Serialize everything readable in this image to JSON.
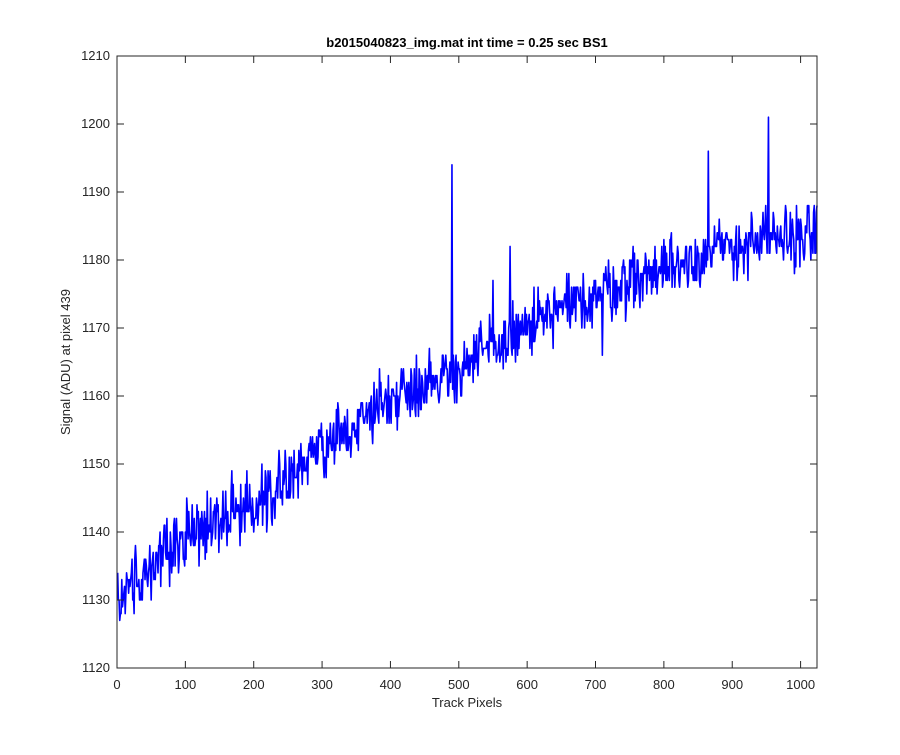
{
  "chart_data": {
    "type": "line",
    "title": "b2015040823_img.mat int time = 0.25 sec   BS1",
    "xlabel": "Track Pixels",
    "ylabel": "Signal (ADU) at pixel 439",
    "xlim": [
      0,
      1024
    ],
    "ylim": [
      1120,
      1210
    ],
    "xticks": [
      0,
      100,
      200,
      300,
      400,
      500,
      600,
      700,
      800,
      900,
      1000
    ],
    "yticks": [
      1120,
      1130,
      1140,
      1150,
      1160,
      1170,
      1180,
      1190,
      1200,
      1210
    ],
    "grid": false,
    "legend": "none",
    "line_color": "#0000ff",
    "series": [
      {
        "x_start": 1,
        "x_step": 1,
        "trend": [
          [
            1,
            1130
          ],
          [
            100,
            1140
          ],
          [
            200,
            1144
          ],
          [
            300,
            1152
          ],
          [
            400,
            1160
          ],
          [
            500,
            1164
          ],
          [
            600,
            1170
          ],
          [
            700,
            1175
          ],
          [
            800,
            1179
          ],
          [
            900,
            1182
          ],
          [
            1024,
            1184
          ]
        ],
        "noise_amplitude": 5,
        "peaks": [
          [
            490,
            1194
          ],
          [
            953,
            1201
          ],
          [
            865,
            1196
          ],
          [
            550,
            1177
          ],
          [
            575,
            1182
          ],
          [
            5,
            1128
          ],
          [
            12,
            1128
          ],
          [
            710,
            1166
          ]
        ],
        "count": 1024
      }
    ]
  }
}
